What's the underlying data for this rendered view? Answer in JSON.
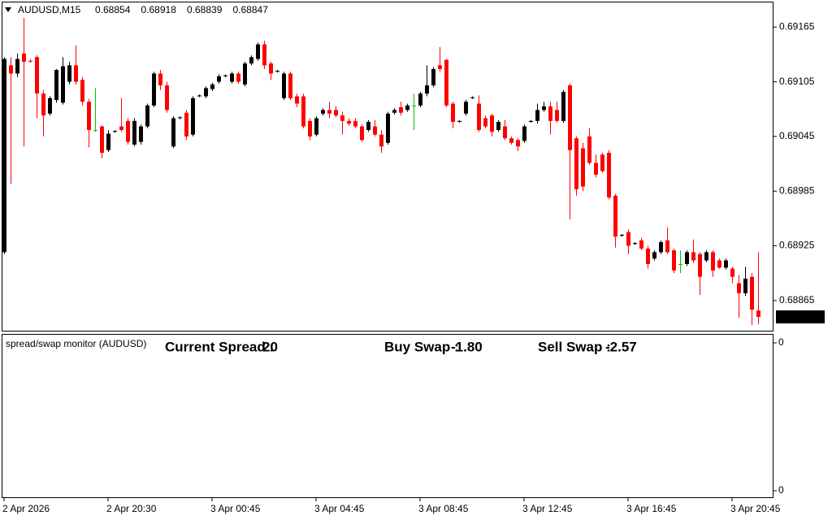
{
  "chart_data": {
    "type": "candlestick",
    "title": "AUDUSD,M15",
    "open": [
      0.68918,
      0.69123,
      0.69114,
      0.69136,
      0.69128,
      0.69132,
      0.69092,
      0.6907,
      0.69085,
      0.69082,
      0.69105,
      0.69123,
      0.69107,
      0.69083,
      0.69052,
      0.69056,
      0.6903,
      0.6905,
      0.69056,
      0.69062,
      0.69036,
      0.69039,
      0.69056,
      0.69079,
      0.69114,
      0.69101,
      0.69034,
      0.69065,
      0.69071,
      0.69047,
      0.69089,
      0.69089,
      0.69097,
      0.69105,
      0.69111,
      0.69105,
      0.69114,
      0.69102,
      0.69125,
      0.6913,
      0.69146,
      0.69125,
      0.69116,
      0.69087,
      0.69114,
      0.69089,
      0.69089,
      0.69062,
      0.69047,
      0.6907,
      0.69074,
      0.69074,
      0.69068,
      0.69062,
      0.69062,
      0.69056,
      0.69052,
      0.69056,
      0.69047,
      0.69038,
      0.69071,
      0.69077,
      0.69074,
      0.69079,
      0.69079,
      0.69092,
      0.69101,
      0.69123,
      0.69129,
      0.69081,
      0.69061,
      0.6907,
      0.69087,
      0.69081,
      0.69065,
      0.69068,
      0.69052,
      0.69056,
      0.69043,
      0.69041,
      0.6904,
      0.69061,
      0.69062,
      0.69074,
      0.69078,
      0.69074,
      0.69062,
      0.69101,
      0.69043,
      0.69032,
      0.69045,
      0.69016,
      0.69025,
      0.69027,
      0.6898,
      0.68936,
      0.6894,
      0.68927,
      0.68931,
      0.68922,
      0.68911,
      0.68918,
      0.68931,
      0.6892,
      0.68905,
      0.68905,
      0.68918,
      0.68916,
      0.68909,
      0.68918,
      0.68909,
      0.68901,
      0.689,
      0.68884,
      0.68873,
      0.68891,
      0.68854
    ],
    "high": [
      0.69132,
      0.69132,
      0.69136,
      0.69175,
      0.6913,
      0.69134,
      0.69096,
      0.69089,
      0.69119,
      0.69132,
      0.69127,
      0.69145,
      0.6911,
      0.69086,
      0.69098,
      0.69057,
      0.69052,
      0.69052,
      0.69087,
      0.69065,
      0.69065,
      0.69058,
      0.69081,
      0.69116,
      0.69118,
      0.69105,
      0.69067,
      0.69067,
      0.69074,
      0.69089,
      0.69091,
      0.691,
      0.69104,
      0.69113,
      0.69113,
      0.69116,
      0.69116,
      0.69127,
      0.69134,
      0.69148,
      0.6915,
      0.69127,
      0.69118,
      0.69116,
      0.69116,
      0.69092,
      0.69092,
      0.69065,
      0.69067,
      0.69076,
      0.69083,
      0.69078,
      0.69072,
      0.69065,
      0.69065,
      0.69058,
      0.69063,
      0.69063,
      0.69052,
      0.69072,
      0.69076,
      0.69083,
      0.69081,
      0.69092,
      0.69094,
      0.69123,
      0.69121,
      0.69143,
      0.6913,
      0.69083,
      0.69063,
      0.69085,
      0.69089,
      0.6909,
      0.69068,
      0.6907,
      0.69063,
      0.69063,
      0.69045,
      0.69043,
      0.69058,
      0.69063,
      0.69081,
      0.69083,
      0.69083,
      0.69083,
      0.69096,
      0.69103,
      0.69045,
      0.69038,
      0.69054,
      0.69025,
      0.69027,
      0.6903,
      0.68982,
      0.68938,
      0.68943,
      0.68929,
      0.68934,
      0.68925,
      0.6892,
      0.68931,
      0.68945,
      0.68922,
      0.6892,
      0.6892,
      0.68932,
      0.68918,
      0.6892,
      0.6892,
      0.68911,
      0.68911,
      0.68902,
      0.68893,
      0.68902,
      0.68895,
      0.68918
    ],
    "low": [
      0.68916,
      0.68993,
      0.6911,
      0.69034,
      0.69126,
      0.69065,
      0.69045,
      0.69068,
      0.69082,
      0.6908,
      0.69102,
      0.69102,
      0.69079,
      0.69033,
      0.6905,
      0.69021,
      0.69028,
      0.69049,
      0.6905,
      0.69036,
      0.69034,
      0.69036,
      0.69054,
      0.69077,
      0.69096,
      0.69071,
      0.69032,
      0.69064,
      0.69041,
      0.69045,
      0.69088,
      0.69087,
      0.69095,
      0.69103,
      0.6911,
      0.69103,
      0.69103,
      0.691,
      0.69123,
      0.69128,
      0.69119,
      0.69107,
      0.69115,
      0.69085,
      0.69085,
      0.69077,
      0.69054,
      0.69041,
      0.69045,
      0.69068,
      0.69065,
      0.69066,
      0.69047,
      0.69057,
      0.69054,
      0.69039,
      0.6905,
      0.69045,
      0.69027,
      0.69036,
      0.69069,
      0.69068,
      0.69072,
      0.69052,
      0.69077,
      0.69089,
      0.69099,
      0.69116,
      0.69077,
      0.69054,
      0.6906,
      0.69068,
      0.69086,
      0.6905,
      0.69054,
      0.69045,
      0.6905,
      0.69041,
      0.69036,
      0.69029,
      0.69038,
      0.6906,
      0.69059,
      0.69072,
      0.69047,
      0.6906,
      0.6906,
      0.68954,
      0.6898,
      0.68985,
      0.69014,
      0.69,
      0.69005,
      0.68976,
      0.68923,
      0.68935,
      0.68916,
      0.68926,
      0.6892,
      0.689,
      0.68909,
      0.68916,
      0.68916,
      0.68895,
      0.68895,
      0.68903,
      0.68906,
      0.68871,
      0.68907,
      0.68891,
      0.689,
      0.68899,
      0.68884,
      0.68846,
      0.6887,
      0.68838,
      0.68839
    ],
    "close": [
      0.6913,
      0.69114,
      0.6913,
      0.69127,
      0.69127,
      0.69092,
      0.69068,
      0.69087,
      0.69118,
      0.69122,
      0.69123,
      0.69105,
      0.69083,
      0.69052,
      0.69052,
      0.69027,
      0.69048,
      0.69051,
      0.69052,
      0.69039,
      0.69062,
      0.69056,
      0.69079,
      0.69114,
      0.69101,
      0.69074,
      0.69065,
      0.69066,
      0.69045,
      0.69087,
      0.6909,
      0.69098,
      0.69102,
      0.69111,
      0.69112,
      0.69114,
      0.69105,
      0.69125,
      0.69132,
      0.69146,
      0.69123,
      0.69114,
      0.69117,
      0.69114,
      0.69087,
      0.69081,
      0.69056,
      0.69045,
      0.69065,
      0.69074,
      0.6907,
      0.69068,
      0.69062,
      0.69059,
      0.69056,
      0.69041,
      0.69061,
      0.69047,
      0.69034,
      0.6907,
      0.69074,
      0.69071,
      0.69079,
      0.69079,
      0.69092,
      0.69101,
      0.69119,
      0.69119,
      0.69079,
      0.69061,
      0.69062,
      0.69083,
      0.69088,
      0.69052,
      0.69056,
      0.6905,
      0.69061,
      0.69043,
      0.69038,
      0.69034,
      0.69056,
      0.69062,
      0.69074,
      0.69078,
      0.69062,
      0.69062,
      0.69094,
      0.6903,
      0.68987,
      0.6899,
      0.69016,
      0.69003,
      0.69007,
      0.68978,
      0.68935,
      0.68937,
      0.68925,
      0.68928,
      0.68922,
      0.68905,
      0.68918,
      0.68929,
      0.68918,
      0.68898,
      0.68905,
      0.68918,
      0.68909,
      0.68891,
      0.68918,
      0.68898,
      0.68901,
      0.68909,
      0.68891,
      0.68873,
      0.68889,
      0.68855,
      0.68847
    ],
    "colors": {
      "up": "#000000",
      "down": "#ff0000",
      "doji": "#00c000"
    },
    "xlim": [
      -0.25,
      118.375
    ],
    "xticks": [
      {
        "value": 0,
        "label": "2 Apr 2026"
      },
      {
        "value": 16,
        "label": "2 Apr 20:30"
      },
      {
        "value": 32,
        "label": "3 Apr 00:45"
      },
      {
        "value": 48,
        "label": "3 Apr 04:45"
      },
      {
        "value": 64,
        "label": "3 Apr 08:45"
      },
      {
        "value": 80,
        "label": "3 Apr 12:45"
      },
      {
        "value": 96,
        "label": "3 Apr 16:45"
      },
      {
        "value": 112,
        "label": "3 Apr 20:45"
      }
    ],
    "ylim": [
      0.68831,
      0.69192
    ],
    "yticks": [
      0.69165,
      0.69105,
      0.69045,
      0.68985,
      0.68925,
      0.68865
    ],
    "indicator": {
      "title": "spread/swap monitor (AUDUSD)",
      "items": [
        {
          "label": "Current Spread :",
          "value": "20",
          "color": "#ffd700"
        },
        {
          "label": "Buy Swap :",
          "value": "-1.80",
          "color": "#0000ff"
        },
        {
          "label": "Sell Swap :",
          "value": "-2.57",
          "color": "#ff0000"
        }
      ],
      "yticks": [
        0,
        0
      ]
    }
  }
}
